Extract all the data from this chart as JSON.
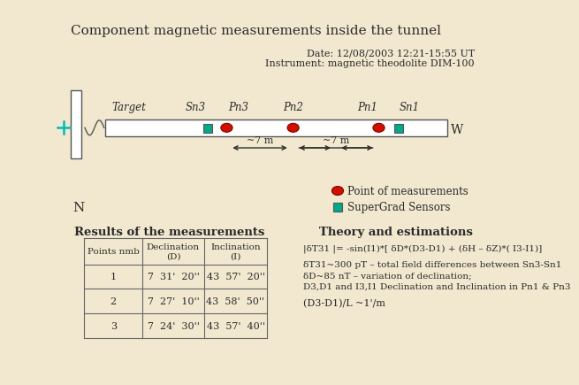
{
  "title": "Component magnetic measurements inside the tunnel",
  "bg_color": "#F2E8D0",
  "date_text": "Date: 12/08/2003 12:21-15:55 UT",
  "instrument_text": "Instrument: magnetic theodolite DIM-100",
  "label_target": "Target",
  "label_sn3": "Sn3",
  "label_pn3": "Pn3",
  "label_pn2": "Pn2",
  "label_pn1": "Pn1",
  "label_sn1": "Sn1",
  "label_W": "W",
  "label_N": "N",
  "label_7m_1": "~7 m",
  "label_7m_2": "~7 m",
  "point_color": "#CC1100",
  "sensor_color": "#00AA88",
  "legend_point": "Point of measurements",
  "legend_sensor": "SuperGrad Sensors",
  "results_title": "Results of the measurements",
  "theory_title": "Theory and estimations",
  "table_headers": [
    "Points nmb",
    "Declination\n(D)",
    "Inclination\n(I)"
  ],
  "table_rows": [
    [
      "1",
      "7  31'  20''",
      "43  57'  20''"
    ],
    [
      "2",
      "7  27'  10''",
      "43  58'  50''"
    ],
    [
      "3",
      "7  24'  30''",
      "43  57'  40''"
    ]
  ],
  "formula": "|δT31 |= -sin(I1)*[ δD*(D3-D1) + (δH – δZ)*( I3-I1)]",
  "theory_line1": "δT31~300 pT – total field differences between Sn3-Sn1",
  "theory_line2": "δD~85 nT – variation of declination;",
  "theory_line3": "D3,D1 and I3,I1 Declination and Inclination in Pn1 & Pn3",
  "theory_line4": "(D3-D1)/L ~1'/m"
}
